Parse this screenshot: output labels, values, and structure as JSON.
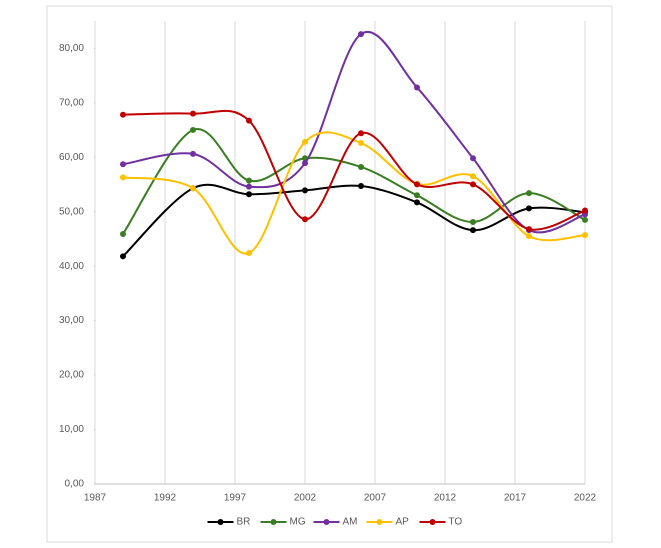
{
  "chart_data": {
    "type": "line",
    "smooth": true,
    "x": [
      1989,
      1994,
      1998,
      2002,
      2006,
      2010,
      2014,
      2018,
      2022
    ],
    "series": [
      {
        "name": "BR",
        "color": "#000000",
        "values": [
          41.8,
          54.3,
          53.2,
          53.9,
          54.7,
          51.7,
          46.6,
          50.6,
          49.9
        ]
      },
      {
        "name": "MG",
        "color": "#3a7d22",
        "values": [
          45.9,
          65.0,
          55.7,
          59.8,
          58.2,
          53.0,
          48.1,
          53.4,
          48.5
        ]
      },
      {
        "name": "AM",
        "color": "#7030a0",
        "values": [
          58.7,
          60.6,
          54.6,
          58.9,
          82.6,
          72.8,
          59.8,
          46.6,
          49.5
        ]
      },
      {
        "name": "AP",
        "color": "#ffc000",
        "values": [
          56.3,
          54.3,
          42.4,
          62.8,
          62.6,
          55.1,
          56.5,
          45.5,
          45.7
        ]
      },
      {
        "name": "TO",
        "color": "#c00000",
        "values": [
          67.8,
          68.0,
          66.7,
          48.6,
          64.4,
          55.0,
          55.0,
          46.8,
          50.2
        ]
      }
    ],
    "xlim": [
      1987,
      2022
    ],
    "xticks": [
      1987,
      1992,
      1997,
      2002,
      2007,
      2012,
      2017,
      2022
    ],
    "ylim": [
      0,
      85
    ],
    "yticks": [
      {
        "value": 0,
        "label": "0,00"
      },
      {
        "value": 10,
        "label": "10,00"
      },
      {
        "value": 20,
        "label": "20,00"
      },
      {
        "value": 30,
        "label": "30,00"
      },
      {
        "value": 40,
        "label": "40,00"
      },
      {
        "value": 50,
        "label": "50,00"
      },
      {
        "value": 60,
        "label": "60,00"
      },
      {
        "value": 70,
        "label": "70,00"
      },
      {
        "value": 80,
        "label": "80,00"
      }
    ],
    "grid": "x",
    "legend": "bottom"
  }
}
